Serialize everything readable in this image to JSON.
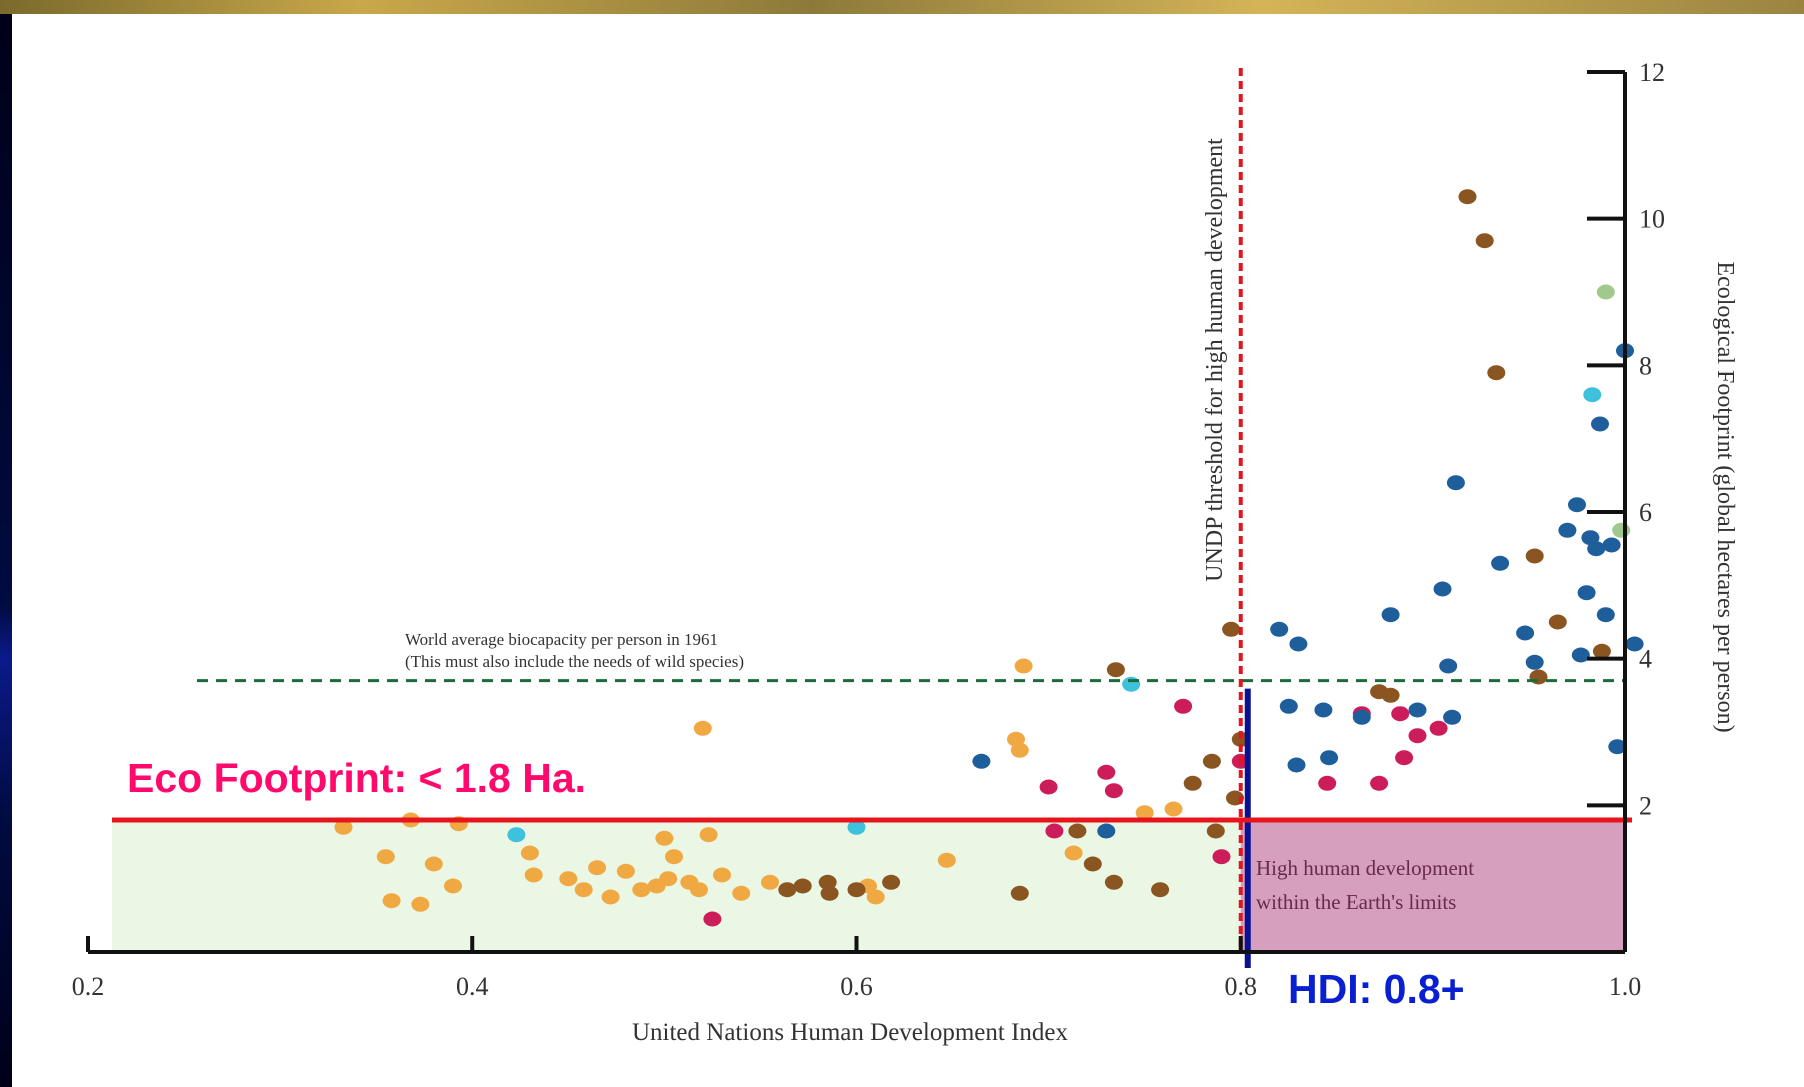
{
  "chart_data": {
    "type": "scatter",
    "title": "",
    "xlabel": "United Nations Human Development Index",
    "ylabel": "Ecological Footprint (global hectares per person)",
    "xlim": [
      0.2,
      1.0
    ],
    "ylim": [
      0,
      12
    ],
    "x_ticks": [
      "0.2",
      "0.4",
      "0.6",
      "0.8",
      "1.0"
    ],
    "y_ticks": [
      "2",
      "4",
      "6",
      "8",
      "10",
      "12"
    ],
    "y_axis_position": "right",
    "grid": false,
    "legend": "none",
    "annotations": {
      "biocapacity_line_1": "World average biocapacity per person in 1961",
      "biocapacity_line_2": "(This must also include the needs of wild species)",
      "biocapacity_value": 3.7,
      "threshold_label": "UNDP threshold for high human development",
      "threshold_value": 0.8,
      "quadrant_line_1": "High human development",
      "quadrant_line_2": "within the Earth's limits",
      "eco_limit_label": "Eco Footprint: < 1.8 Ha.",
      "eco_limit_value": 1.8,
      "hdi_label": "HDI: 0.8+"
    },
    "colors": {
      "africa": "#f0a942",
      "asia": "#8a5520",
      "latin_america": "#cc1c5a",
      "europe": "#1e5e9b",
      "middle_east": "#3ec1dc",
      "north_america": "#a2c98d",
      "biocapacity_line": "#1a6b3c",
      "threshold_line": "#e0161e",
      "eco_limit_line": "#e8141c",
      "eco_limit_text": "#ff0a6c",
      "hdi_text": "#0a1fd1",
      "hdi_marker": "#0a1090",
      "low_zone": "#e9f7e4",
      "target_zone": "#d69fbe"
    },
    "points": [
      {
        "x": 0.333,
        "y": 1.7,
        "group": "africa"
      },
      {
        "x": 0.355,
        "y": 1.3,
        "group": "africa"
      },
      {
        "x": 0.368,
        "y": 1.8,
        "group": "africa"
      },
      {
        "x": 0.358,
        "y": 0.7,
        "group": "africa"
      },
      {
        "x": 0.373,
        "y": 0.65,
        "group": "africa"
      },
      {
        "x": 0.38,
        "y": 1.2,
        "group": "africa"
      },
      {
        "x": 0.39,
        "y": 0.9,
        "group": "africa"
      },
      {
        "x": 0.393,
        "y": 1.75,
        "group": "africa"
      },
      {
        "x": 0.43,
        "y": 1.35,
        "group": "africa"
      },
      {
        "x": 0.432,
        "y": 1.05,
        "group": "africa"
      },
      {
        "x": 0.45,
        "y": 1.0,
        "group": "africa"
      },
      {
        "x": 0.458,
        "y": 0.85,
        "group": "africa"
      },
      {
        "x": 0.465,
        "y": 1.15,
        "group": "africa"
      },
      {
        "x": 0.472,
        "y": 0.75,
        "group": "africa"
      },
      {
        "x": 0.48,
        "y": 1.1,
        "group": "africa"
      },
      {
        "x": 0.488,
        "y": 0.85,
        "group": "africa"
      },
      {
        "x": 0.496,
        "y": 0.9,
        "group": "africa"
      },
      {
        "x": 0.502,
        "y": 1.0,
        "group": "africa"
      },
      {
        "x": 0.5,
        "y": 1.55,
        "group": "africa"
      },
      {
        "x": 0.505,
        "y": 1.3,
        "group": "africa"
      },
      {
        "x": 0.513,
        "y": 0.95,
        "group": "africa"
      },
      {
        "x": 0.518,
        "y": 0.85,
        "group": "africa"
      },
      {
        "x": 0.52,
        "y": 3.05,
        "group": "africa"
      },
      {
        "x": 0.523,
        "y": 1.6,
        "group": "africa"
      },
      {
        "x": 0.53,
        "y": 1.05,
        "group": "africa"
      },
      {
        "x": 0.54,
        "y": 0.8,
        "group": "africa"
      },
      {
        "x": 0.555,
        "y": 0.95,
        "group": "africa"
      },
      {
        "x": 0.606,
        "y": 0.9,
        "group": "africa"
      },
      {
        "x": 0.61,
        "y": 0.75,
        "group": "africa"
      },
      {
        "x": 0.647,
        "y": 1.25,
        "group": "africa"
      },
      {
        "x": 0.683,
        "y": 2.9,
        "group": "africa"
      },
      {
        "x": 0.685,
        "y": 2.75,
        "group": "africa"
      },
      {
        "x": 0.687,
        "y": 3.9,
        "group": "africa"
      },
      {
        "x": 0.713,
        "y": 1.35,
        "group": "africa"
      },
      {
        "x": 0.75,
        "y": 1.9,
        "group": "africa"
      },
      {
        "x": 0.765,
        "y": 1.95,
        "group": "africa"
      },
      {
        "x": 0.564,
        "y": 0.85,
        "group": "asia"
      },
      {
        "x": 0.572,
        "y": 0.9,
        "group": "asia"
      },
      {
        "x": 0.585,
        "y": 0.95,
        "group": "asia"
      },
      {
        "x": 0.586,
        "y": 0.8,
        "group": "asia"
      },
      {
        "x": 0.6,
        "y": 0.85,
        "group": "asia"
      },
      {
        "x": 0.618,
        "y": 0.95,
        "group": "asia"
      },
      {
        "x": 0.685,
        "y": 0.8,
        "group": "asia"
      },
      {
        "x": 0.715,
        "y": 1.65,
        "group": "asia"
      },
      {
        "x": 0.723,
        "y": 1.2,
        "group": "asia"
      },
      {
        "x": 0.734,
        "y": 0.95,
        "group": "asia"
      },
      {
        "x": 0.735,
        "y": 3.85,
        "group": "asia"
      },
      {
        "x": 0.758,
        "y": 0.85,
        "group": "asia"
      },
      {
        "x": 0.775,
        "y": 2.3,
        "group": "asia"
      },
      {
        "x": 0.785,
        "y": 2.6,
        "group": "asia"
      },
      {
        "x": 0.787,
        "y": 1.65,
        "group": "asia"
      },
      {
        "x": 0.795,
        "y": 4.4,
        "group": "asia"
      },
      {
        "x": 0.797,
        "y": 2.1,
        "group": "asia"
      },
      {
        "x": 0.8,
        "y": 2.9,
        "group": "asia"
      },
      {
        "x": 0.872,
        "y": 3.55,
        "group": "asia"
      },
      {
        "x": 0.878,
        "y": 3.5,
        "group": "asia"
      },
      {
        "x": 0.918,
        "y": 10.3,
        "group": "asia"
      },
      {
        "x": 0.927,
        "y": 9.7,
        "group": "asia"
      },
      {
        "x": 0.933,
        "y": 7.9,
        "group": "asia"
      },
      {
        "x": 0.953,
        "y": 5.4,
        "group": "asia"
      },
      {
        "x": 0.955,
        "y": 3.75,
        "group": "asia"
      },
      {
        "x": 0.965,
        "y": 4.5,
        "group": "asia"
      },
      {
        "x": 0.988,
        "y": 4.1,
        "group": "asia"
      },
      {
        "x": 0.525,
        "y": 0.45,
        "group": "latin_america"
      },
      {
        "x": 0.7,
        "y": 2.25,
        "group": "latin_america"
      },
      {
        "x": 0.703,
        "y": 1.65,
        "group": "latin_america"
      },
      {
        "x": 0.73,
        "y": 2.45,
        "group": "latin_america"
      },
      {
        "x": 0.734,
        "y": 2.2,
        "group": "latin_america"
      },
      {
        "x": 0.77,
        "y": 3.35,
        "group": "latin_america"
      },
      {
        "x": 0.79,
        "y": 1.3,
        "group": "latin_america"
      },
      {
        "x": 0.8,
        "y": 2.6,
        "group": "latin_america"
      },
      {
        "x": 0.845,
        "y": 2.3,
        "group": "latin_america"
      },
      {
        "x": 0.863,
        "y": 3.25,
        "group": "latin_america"
      },
      {
        "x": 0.872,
        "y": 2.3,
        "group": "latin_america"
      },
      {
        "x": 0.883,
        "y": 3.25,
        "group": "latin_america"
      },
      {
        "x": 0.885,
        "y": 2.65,
        "group": "latin_america"
      },
      {
        "x": 0.892,
        "y": 2.95,
        "group": "latin_america"
      },
      {
        "x": 0.903,
        "y": 3.05,
        "group": "latin_america"
      },
      {
        "x": 0.665,
        "y": 2.6,
        "group": "europe"
      },
      {
        "x": 0.73,
        "y": 1.65,
        "group": "europe"
      },
      {
        "x": 0.82,
        "y": 4.4,
        "group": "europe"
      },
      {
        "x": 0.83,
        "y": 4.2,
        "group": "europe"
      },
      {
        "x": 0.825,
        "y": 3.35,
        "group": "europe"
      },
      {
        "x": 0.829,
        "y": 2.55,
        "group": "europe"
      },
      {
        "x": 0.843,
        "y": 3.3,
        "group": "europe"
      },
      {
        "x": 0.846,
        "y": 2.65,
        "group": "europe"
      },
      {
        "x": 0.863,
        "y": 3.2,
        "group": "europe"
      },
      {
        "x": 0.878,
        "y": 4.6,
        "group": "europe"
      },
      {
        "x": 0.892,
        "y": 3.3,
        "group": "europe"
      },
      {
        "x": 0.905,
        "y": 4.95,
        "group": "europe"
      },
      {
        "x": 0.908,
        "y": 3.9,
        "group": "europe"
      },
      {
        "x": 0.91,
        "y": 3.2,
        "group": "europe"
      },
      {
        "x": 0.912,
        "y": 6.4,
        "group": "europe"
      },
      {
        "x": 0.935,
        "y": 5.3,
        "group": "europe"
      },
      {
        "x": 0.948,
        "y": 4.35,
        "group": "europe"
      },
      {
        "x": 0.953,
        "y": 3.95,
        "group": "europe"
      },
      {
        "x": 0.97,
        "y": 5.75,
        "group": "europe"
      },
      {
        "x": 0.975,
        "y": 6.1,
        "group": "europe"
      },
      {
        "x": 0.977,
        "y": 4.05,
        "group": "europe"
      },
      {
        "x": 0.98,
        "y": 4.9,
        "group": "europe"
      },
      {
        "x": 0.982,
        "y": 5.65,
        "group": "europe"
      },
      {
        "x": 0.985,
        "y": 5.5,
        "group": "europe"
      },
      {
        "x": 0.987,
        "y": 7.2,
        "group": "europe"
      },
      {
        "x": 0.99,
        "y": 4.6,
        "group": "europe"
      },
      {
        "x": 0.993,
        "y": 5.55,
        "group": "europe"
      },
      {
        "x": 0.996,
        "y": 2.8,
        "group": "europe"
      },
      {
        "x": 1.0,
        "y": 8.2,
        "group": "europe"
      },
      {
        "x": 1.005,
        "y": 4.2,
        "group": "europe"
      },
      {
        "x": 0.423,
        "y": 1.6,
        "group": "middle_east"
      },
      {
        "x": 0.6,
        "y": 1.7,
        "group": "middle_east"
      },
      {
        "x": 0.743,
        "y": 3.65,
        "group": "middle_east"
      },
      {
        "x": 0.983,
        "y": 7.6,
        "group": "middle_east"
      },
      {
        "x": 0.99,
        "y": 9.0,
        "group": "north_america"
      },
      {
        "x": 0.998,
        "y": 5.75,
        "group": "north_america"
      }
    ]
  }
}
